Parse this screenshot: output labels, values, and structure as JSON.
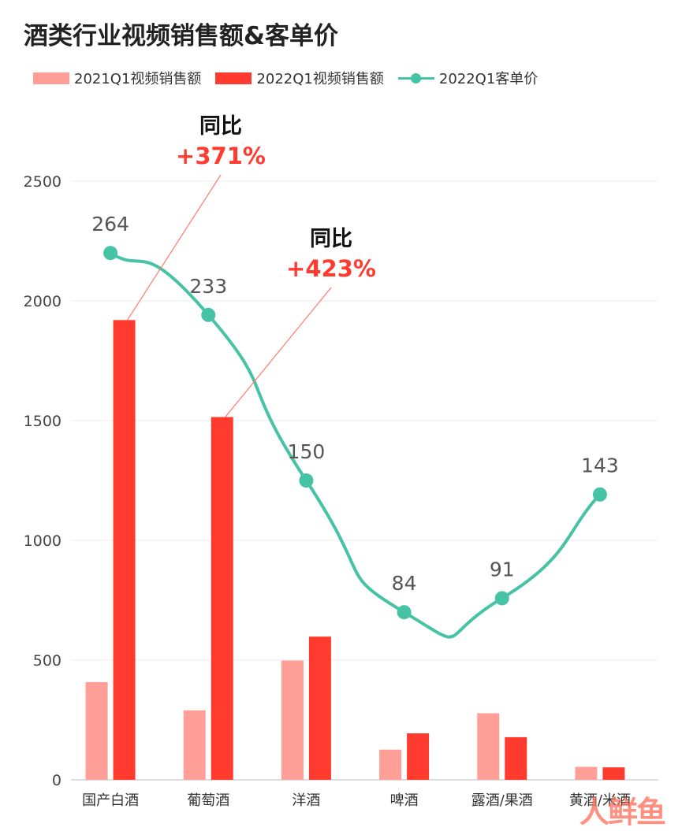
{
  "chart_data": {
    "type": "bar",
    "title": "酒类行业视频销售额&客单价",
    "categories": [
      "国产白酒",
      "葡萄酒",
      "洋酒",
      "啤酒",
      "露酒/果酒",
      "黄酒/米酒"
    ],
    "series": [
      {
        "name": "2021Q1视频销售额",
        "type": "bar",
        "color": "#ff9f97",
        "values": [
          408,
          290,
          498,
          126,
          278,
          54
        ]
      },
      {
        "name": "2022Q1视频销售额",
        "type": "bar",
        "color": "#ff3b30",
        "values": [
          1920,
          1515,
          598,
          194,
          178,
          52
        ]
      },
      {
        "name": "2022Q1客单价",
        "type": "line",
        "color": "#46c2a5",
        "values": [
          264,
          233,
          150,
          84,
          91,
          143
        ],
        "labels": [
          "264",
          "233",
          "150",
          "84",
          "91",
          "143"
        ]
      }
    ],
    "yticks": [
      0,
      500,
      1000,
      1500,
      2000,
      2500
    ],
    "ylim": [
      0,
      2500
    ],
    "grid": true,
    "legend": "top-left",
    "annotations": [
      {
        "category": "国产白酒",
        "label": "同比",
        "value": "+371%"
      },
      {
        "category": "葡萄酒",
        "label": "同比",
        "value": "+423%"
      }
    ]
  },
  "watermark": "人鲜鱼"
}
